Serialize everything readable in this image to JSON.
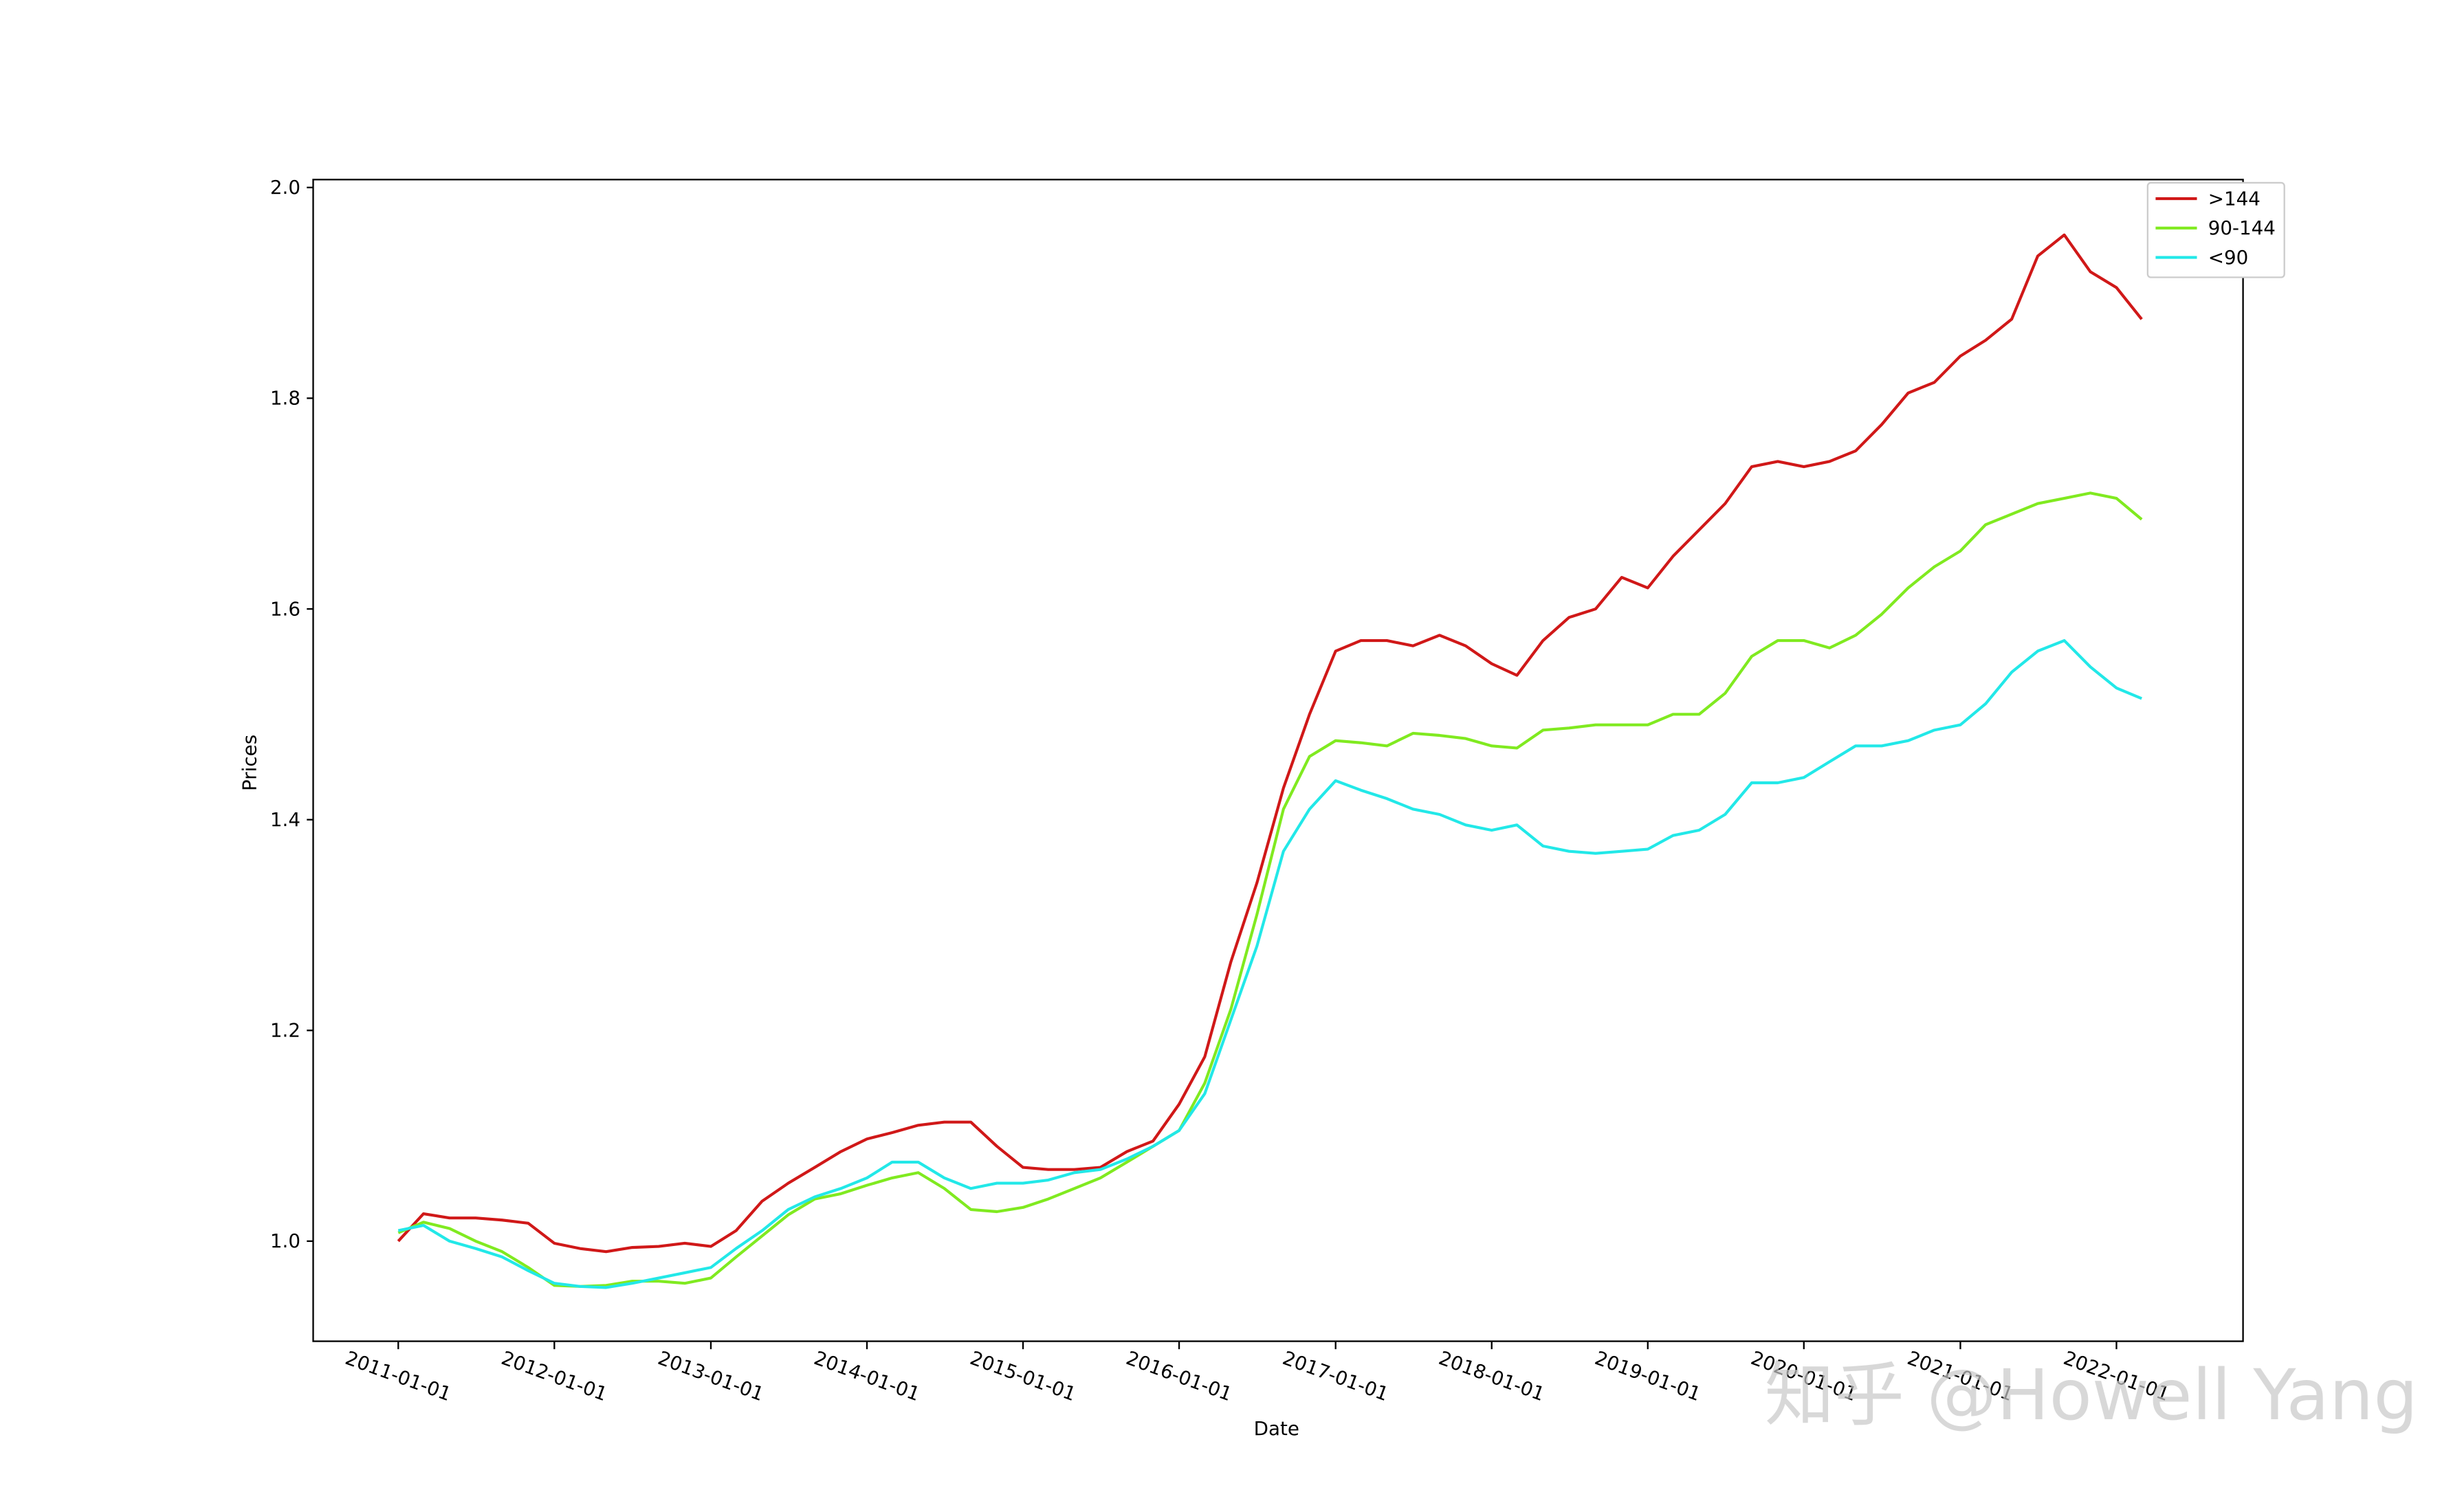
{
  "chart_data": {
    "type": "line",
    "xlabel": "Date",
    "ylabel": "Prices",
    "x": [
      "2011-01-01",
      "2011-03-01",
      "2011-05-01",
      "2011-07-01",
      "2011-09-01",
      "2011-11-01",
      "2012-01-01",
      "2012-03-01",
      "2012-05-01",
      "2012-07-01",
      "2012-09-01",
      "2012-11-01",
      "2013-01-01",
      "2013-03-01",
      "2013-05-01",
      "2013-07-01",
      "2013-09-01",
      "2013-11-01",
      "2014-01-01",
      "2014-03-01",
      "2014-05-01",
      "2014-07-01",
      "2014-09-01",
      "2014-11-01",
      "2015-01-01",
      "2015-03-01",
      "2015-05-01",
      "2015-07-01",
      "2015-09-01",
      "2015-11-01",
      "2016-01-01",
      "2016-03-01",
      "2016-05-01",
      "2016-07-01",
      "2016-09-01",
      "2016-11-01",
      "2017-01-01",
      "2017-03-01",
      "2017-05-01",
      "2017-07-01",
      "2017-09-01",
      "2017-11-01",
      "2018-01-01",
      "2018-03-01",
      "2018-05-01",
      "2018-07-01",
      "2018-09-01",
      "2018-11-01",
      "2019-01-01",
      "2019-03-01",
      "2019-05-01",
      "2019-07-01",
      "2019-09-01",
      "2019-11-01",
      "2020-01-01",
      "2020-03-01",
      "2020-05-01",
      "2020-07-01",
      "2020-09-01",
      "2020-11-01",
      "2021-01-01",
      "2021-03-01",
      "2021-05-01",
      "2021-07-01",
      "2021-09-01",
      "2021-11-01",
      "2022-01-01",
      "2022-03-01"
    ],
    "series": [
      {
        "name": ">144",
        "color": "#d01818",
        "values": [
          1.0,
          1.026,
          1.022,
          1.022,
          1.02,
          1.017,
          0.998,
          0.993,
          0.99,
          0.994,
          0.995,
          0.998,
          0.995,
          1.01,
          1.038,
          1.055,
          1.07,
          1.085,
          1.097,
          1.103,
          1.11,
          1.113,
          1.113,
          1.09,
          1.07,
          1.068,
          1.068,
          1.07,
          1.085,
          1.095,
          1.13,
          1.175,
          1.265,
          1.34,
          1.43,
          1.5,
          1.56,
          1.57,
          1.57,
          1.565,
          1.575,
          1.565,
          1.548,
          1.537,
          1.57,
          1.592,
          1.6,
          1.63,
          1.62,
          1.65,
          1.675,
          1.7,
          1.735,
          1.74,
          1.735,
          1.74,
          1.75,
          1.775,
          1.805,
          1.815,
          1.84,
          1.855,
          1.875,
          1.935,
          1.955,
          1.92,
          1.905,
          1.875
        ]
      },
      {
        "name": "90-144",
        "color": "#80ea20",
        "values": [
          1.008,
          1.018,
          1.012,
          1.0,
          0.99,
          0.975,
          0.958,
          0.957,
          0.958,
          0.962,
          0.962,
          0.96,
          0.965,
          0.985,
          1.005,
          1.025,
          1.04,
          1.045,
          1.053,
          1.06,
          1.065,
          1.05,
          1.03,
          1.028,
          1.032,
          1.04,
          1.05,
          1.06,
          1.075,
          1.09,
          1.105,
          1.15,
          1.22,
          1.31,
          1.41,
          1.46,
          1.475,
          1.473,
          1.47,
          1.482,
          1.48,
          1.477,
          1.47,
          1.468,
          1.485,
          1.487,
          1.49,
          1.49,
          1.49,
          1.5,
          1.5,
          1.52,
          1.555,
          1.57,
          1.57,
          1.563,
          1.575,
          1.595,
          1.62,
          1.64,
          1.655,
          1.68,
          1.69,
          1.7,
          1.705,
          1.71,
          1.705,
          1.685
        ]
      },
      {
        "name": "<90",
        "color": "#22e8e8",
        "values": [
          1.01,
          1.015,
          1.0,
          0.993,
          0.985,
          0.972,
          0.96,
          0.957,
          0.956,
          0.96,
          0.965,
          0.97,
          0.975,
          0.993,
          1.01,
          1.03,
          1.042,
          1.05,
          1.06,
          1.075,
          1.075,
          1.06,
          1.05,
          1.055,
          1.055,
          1.058,
          1.065,
          1.068,
          1.078,
          1.09,
          1.105,
          1.14,
          1.21,
          1.28,
          1.37,
          1.41,
          1.437,
          1.428,
          1.42,
          1.41,
          1.405,
          1.395,
          1.39,
          1.395,
          1.375,
          1.37,
          1.368,
          1.37,
          1.372,
          1.385,
          1.39,
          1.405,
          1.435,
          1.435,
          1.44,
          1.455,
          1.47,
          1.47,
          1.475,
          1.485,
          1.49,
          1.51,
          1.54,
          1.56,
          1.57,
          1.545,
          1.525,
          1.515
        ]
      }
    ],
    "xlim": [
      "2010-06-16",
      "2022-10-24"
    ],
    "xticks": [
      "2011-01-01",
      "2012-01-01",
      "2013-01-01",
      "2014-01-01",
      "2015-01-01",
      "2016-01-01",
      "2017-01-01",
      "2018-01-01",
      "2019-01-01",
      "2020-01-01",
      "2021-01-01",
      "2022-01-01"
    ],
    "ylim": [
      0.905,
      2.0075
    ],
    "yticks": [
      {
        "value": 1.0,
        "label": "1.0"
      },
      1.2,
      1.4,
      1.6,
      1.8,
      {
        "value": 2.0,
        "label": "2.0"
      }
    ],
    "legend": "upper right",
    "grid": false,
    "watermark": "知乎 @Howell Yang"
  }
}
